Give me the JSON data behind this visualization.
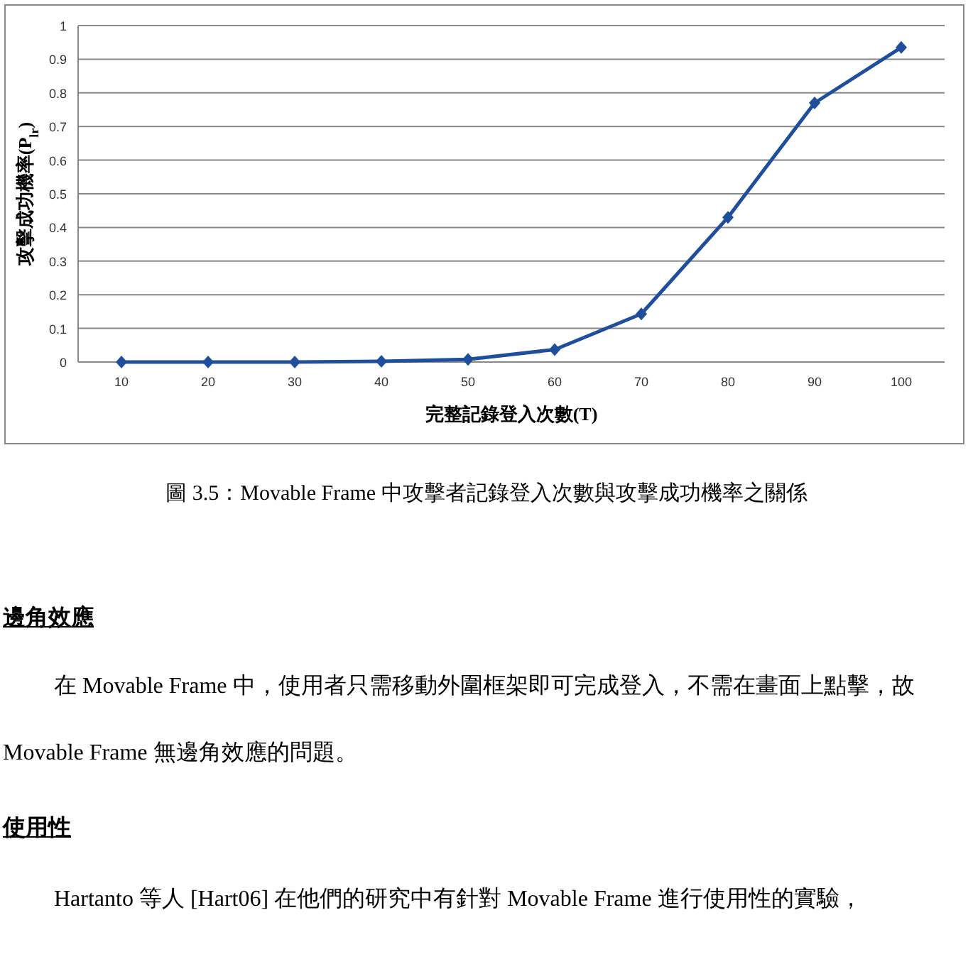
{
  "chart_data": {
    "type": "line",
    "ylabel": "攻擊成功機率(P$_{lr}$)",
    "xlabel": "完整記錄登入次數(T)",
    "categories": [
      "10",
      "20",
      "30",
      "40",
      "50",
      "60",
      "70",
      "80",
      "90",
      "100"
    ],
    "series": [
      {
        "color": "#1f4e9c",
        "values": [
          0,
          0,
          0,
          0.002,
          0.008,
          0.037,
          0.143,
          0.43,
          0.77,
          0.935
        ]
      }
    ],
    "ylim": [
      0,
      1
    ],
    "yticks": [
      0,
      0.1,
      0.2,
      0.3,
      0.4,
      0.5,
      0.6,
      0.7,
      0.8,
      0.9,
      1
    ],
    "grid": "y",
    "marker": "diamond",
    "line_style": "solid",
    "annotations": [
      "圖 3.5：Movable Frame 中攻擊者記錄登入次數與攻擊成功機率之關係",
      "邊角效應",
      "在 Movable Frame 中，使用者只需移動外圍框架即可完成登入，不需在畫面上點擊，故 Movable Frame 無邊角效應的問題。",
      "使用性",
      "Hartanto 等人 [Hart06] 在他們的研究中有針對 Movable Frame 進行使用性的實驗，"
    ]
  }
}
